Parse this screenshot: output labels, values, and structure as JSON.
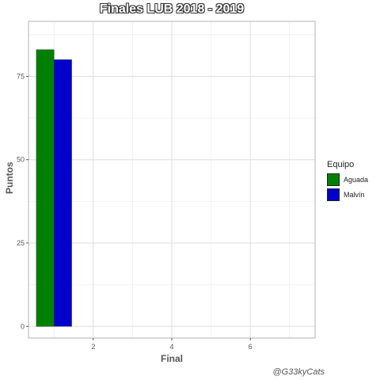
{
  "chart_data": {
    "type": "bar",
    "title": "Finales LUB 2018 - 2019",
    "xlabel": "Final",
    "ylabel": "Puntos",
    "caption": "@G33kyCats",
    "legend_title": "Equipo",
    "legend_position": "right",
    "grid": true,
    "x": [
      1
    ],
    "xlim": [
      0.35,
      7.65
    ],
    "ylim": [
      -3.5,
      91.5
    ],
    "xticks": [
      2,
      4,
      6
    ],
    "yticks": [
      0,
      25,
      50,
      75
    ],
    "bar_width": 0.9,
    "series": [
      {
        "name": "Aguada",
        "values": [
          83
        ],
        "color": "#008000"
      },
      {
        "name": "Malvín",
        "values": [
          80
        ],
        "color": "#0000CD"
      }
    ]
  }
}
